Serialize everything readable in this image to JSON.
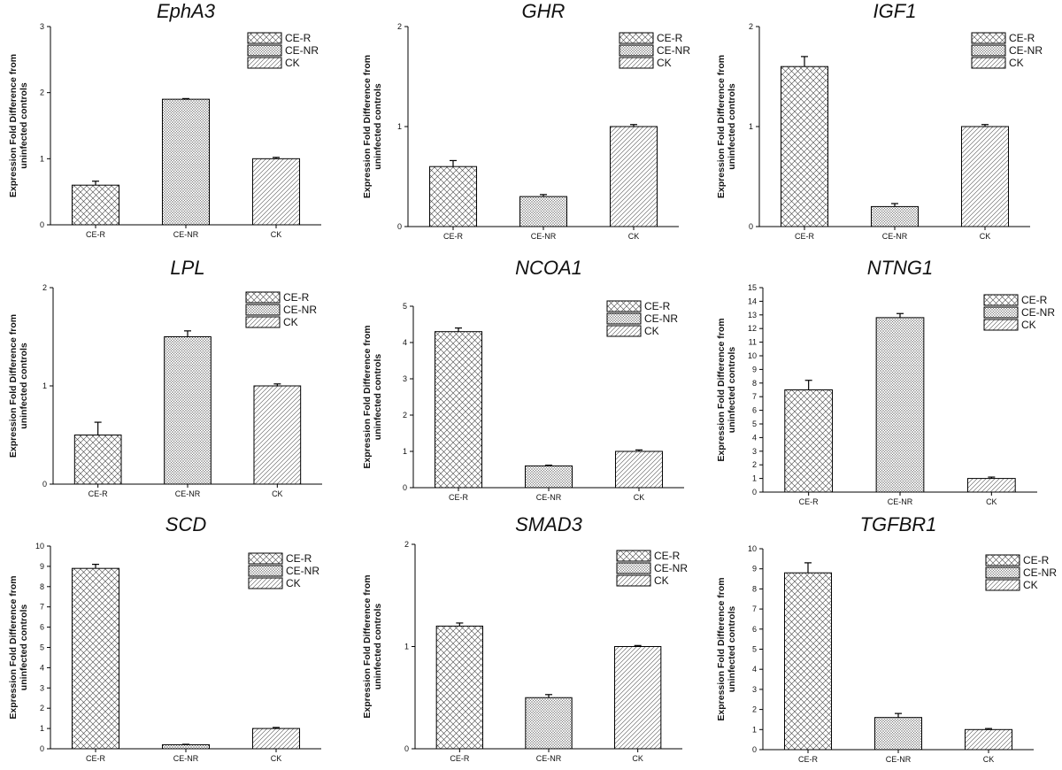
{
  "figure": {
    "patterns": [
      "crosshatch",
      "dense-mesh",
      "diagonal"
    ],
    "colors": {
      "stroke": "#000000",
      "background": "#ffffff",
      "errorbar": "#000000"
    }
  },
  "chart_data": [
    {
      "type": "bar",
      "title": "EphA3",
      "ylabel": [
        "Expression Fold Difference from",
        "uninfected controls"
      ],
      "xlabel": "",
      "categories": [
        "CE-R",
        "CE-NR",
        "CK"
      ],
      "legend": [
        "CE-R",
        "CE-NR",
        "CK"
      ],
      "legend_position": "top-right",
      "values": [
        0.6,
        1.9,
        1.0
      ],
      "errors": [
        0.06,
        0.01,
        0.02
      ],
      "ylim": [
        0,
        3
      ],
      "yticks": [
        0,
        1,
        2,
        3
      ]
    },
    {
      "type": "bar",
      "title": "GHR",
      "ylabel": [
        "Expression Fold Difference from",
        "uninfected controls"
      ],
      "xlabel": "",
      "categories": [
        "CE-R",
        "CE-NR",
        "CK"
      ],
      "legend": [
        "CE-R",
        "CE-NR",
        "CK"
      ],
      "legend_position": "top-right",
      "values": [
        0.6,
        0.3,
        1.0
      ],
      "errors": [
        0.06,
        0.02,
        0.02
      ],
      "ylim": [
        0,
        2
      ],
      "yticks": [
        0,
        1,
        2
      ]
    },
    {
      "type": "bar",
      "title": "IGF1",
      "ylabel": [
        "Expression Fold Difference from",
        "uninfected controls"
      ],
      "xlabel": "",
      "categories": [
        "CE-R",
        "CE-NR",
        "CK"
      ],
      "legend": [
        "CE-R",
        "CE-NR",
        "CK"
      ],
      "legend_position": "top-right",
      "values": [
        1.6,
        0.2,
        1.0
      ],
      "errors": [
        0.1,
        0.03,
        0.02
      ],
      "ylim": [
        0,
        2
      ],
      "yticks": [
        0,
        1,
        2
      ]
    },
    {
      "type": "bar",
      "title": "LPL",
      "ylabel": [
        "Expression Fold Difference from",
        "uninfected controls"
      ],
      "xlabel": "",
      "categories": [
        "CE-R",
        "CE-NR",
        "CK"
      ],
      "legend": [
        "CE-R",
        "CE-NR",
        "CK"
      ],
      "legend_position": "top-right",
      "values": [
        0.5,
        1.5,
        1.0
      ],
      "errors": [
        0.13,
        0.06,
        0.02
      ],
      "ylim": [
        0,
        2
      ],
      "yticks": [
        0,
        1,
        2
      ]
    },
    {
      "type": "bar",
      "title": "NCOA1",
      "ylabel": [
        "Expression Fold Difference from",
        "uninfected controls"
      ],
      "xlabel": "",
      "categories": [
        "CE-R",
        "CE-NR",
        "CK"
      ],
      "legend": [
        "CE-R",
        "CE-NR",
        "CK"
      ],
      "legend_position": "top-right",
      "values": [
        4.3,
        0.6,
        1.0
      ],
      "errors": [
        0.1,
        0.02,
        0.04
      ],
      "ylim": [
        0,
        5
      ],
      "yticks": [
        0,
        1,
        2,
        3,
        4,
        5
      ]
    },
    {
      "type": "bar",
      "title": "NTNG1",
      "ylabel": [
        "Expression Fold Difference from",
        "uninfected controls"
      ],
      "xlabel": "",
      "categories": [
        "CE-R",
        "CE-NR",
        "CK"
      ],
      "legend": [
        "CE-R",
        "CE-NR",
        "CK"
      ],
      "legend_position": "top-right",
      "values": [
        7.5,
        12.8,
        1.0
      ],
      "errors": [
        0.7,
        0.3,
        0.1
      ],
      "ylim": [
        0,
        15
      ],
      "yticks": [
        0,
        1,
        2,
        3,
        4,
        5,
        6,
        7,
        8,
        9,
        10,
        11,
        12,
        13,
        14,
        15
      ]
    },
    {
      "type": "bar",
      "title": "SCD",
      "ylabel": [
        "Expression Fold Difference from",
        "uninfected controls"
      ],
      "xlabel": "",
      "categories": [
        "CE-R",
        "CE-NR",
        "CK"
      ],
      "legend": [
        "CE-R",
        "CE-NR",
        "CK"
      ],
      "legend_position": "top-right",
      "values": [
        8.9,
        0.2,
        1.0
      ],
      "errors": [
        0.2,
        0.02,
        0.05
      ],
      "ylim": [
        0,
        10
      ],
      "yticks": [
        0,
        1,
        2,
        3,
        4,
        5,
        6,
        7,
        8,
        9,
        10
      ]
    },
    {
      "type": "bar",
      "title": "SMAD3",
      "ylabel": [
        "Expression Fold Difference from",
        "uninfected controls"
      ],
      "xlabel": "",
      "categories": [
        "CE-R",
        "CE-NR",
        "CK"
      ],
      "legend": [
        "CE-R",
        "CE-NR",
        "CK"
      ],
      "legend_position": "top-right",
      "values": [
        1.2,
        0.5,
        1.0
      ],
      "errors": [
        0.03,
        0.03,
        0.01
      ],
      "ylim": [
        0,
        2
      ],
      "yticks": [
        0,
        1,
        2
      ]
    },
    {
      "type": "bar",
      "title": "TGFBR1",
      "ylabel": [
        "Expression Fold Difference from",
        "uninfected controls"
      ],
      "xlabel": "",
      "categories": [
        "CE-R",
        "CE-NR",
        "CK"
      ],
      "legend": [
        "CE-R",
        "CE-NR",
        "CK"
      ],
      "legend_position": "top-right",
      "values": [
        8.8,
        1.6,
        1.0
      ],
      "errors": [
        0.5,
        0.2,
        0.05
      ],
      "ylim": [
        0,
        10
      ],
      "yticks": [
        0,
        1,
        2,
        3,
        4,
        5,
        6,
        7,
        8,
        9,
        10
      ]
    }
  ]
}
